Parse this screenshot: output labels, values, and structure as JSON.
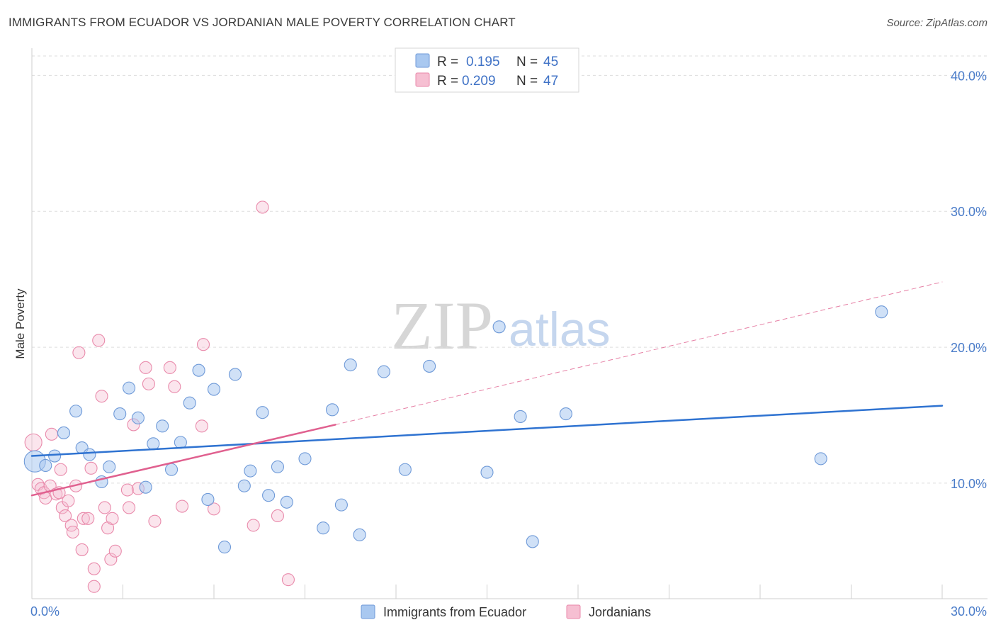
{
  "title": "IMMIGRANTS FROM ECUADOR VS JORDANIAN MALE POVERTY CORRELATION CHART",
  "source": "Source: ZipAtlas.com",
  "watermark": {
    "zip": "ZIP",
    "atlas": "atlas"
  },
  "colors": {
    "blue_fill": "#a9c8f0",
    "blue_stroke": "#6f9ad8",
    "blue_line": "#2f73d1",
    "pink_fill": "#f6bfd2",
    "pink_stroke": "#e98aab",
    "pink_line": "#e0608f",
    "tick_color": "#4a7cc9",
    "grid": "#dddddd"
  },
  "legend": {
    "rows": [
      {
        "r_label": "R =",
        "r_value": "0.195",
        "n_label": "N =",
        "n_value": "45",
        "color": "blue"
      },
      {
        "r_label": "R =",
        "r_value": "0.209",
        "n_label": "N =",
        "n_value": "47",
        "color": "pink"
      }
    ]
  },
  "bottom_legend": [
    {
      "label": "Immigrants from Ecuador",
      "color": "blue"
    },
    {
      "label": "Jordanians",
      "color": "pink"
    }
  ],
  "chart_data": {
    "type": "scatter",
    "xlabel": "",
    "ylabel": "Male Poverty",
    "xlim": [
      0,
      30
    ],
    "ylim": [
      1.5,
      42
    ],
    "x_tick_labels": [
      {
        "value": 0,
        "label": "0.0%"
      },
      {
        "value": 30,
        "label": "30.0%"
      }
    ],
    "y_tick_labels": [
      {
        "value": 10,
        "label": "10.0%"
      },
      {
        "value": 20,
        "label": "20.0%"
      },
      {
        "value": 30,
        "label": "30.0%"
      },
      {
        "value": 40,
        "label": "40.0%"
      }
    ],
    "grid": "horizontal dashed",
    "legend_placement": "top-center",
    "series": [
      {
        "name": "Immigrants from Ecuador",
        "color": "blue",
        "points": [
          [
            0.1,
            11.6
          ],
          [
            0.45,
            11.3
          ],
          [
            0.75,
            12.0
          ],
          [
            1.05,
            13.7
          ],
          [
            1.45,
            15.3
          ],
          [
            1.65,
            12.6
          ],
          [
            1.9,
            12.1
          ],
          [
            2.3,
            10.1
          ],
          [
            2.55,
            11.2
          ],
          [
            2.9,
            15.1
          ],
          [
            3.2,
            17.0
          ],
          [
            3.5,
            14.8
          ],
          [
            3.75,
            9.7
          ],
          [
            4.0,
            12.9
          ],
          [
            4.3,
            14.2
          ],
          [
            4.6,
            11.0
          ],
          [
            4.9,
            13.0
          ],
          [
            5.2,
            15.9
          ],
          [
            5.5,
            18.3
          ],
          [
            5.8,
            8.8
          ],
          [
            6.0,
            16.9
          ],
          [
            6.35,
            5.3
          ],
          [
            6.7,
            18.0
          ],
          [
            7.0,
            9.8
          ],
          [
            7.2,
            10.9
          ],
          [
            7.6,
            15.2
          ],
          [
            7.8,
            9.1
          ],
          [
            8.1,
            11.2
          ],
          [
            8.4,
            8.6
          ],
          [
            9.0,
            11.8
          ],
          [
            9.6,
            6.7
          ],
          [
            9.9,
            15.4
          ],
          [
            10.2,
            8.4
          ],
          [
            10.5,
            18.7
          ],
          [
            10.8,
            6.2
          ],
          [
            11.6,
            18.2
          ],
          [
            12.3,
            11.0
          ],
          [
            13.1,
            18.6
          ],
          [
            15.0,
            10.8
          ],
          [
            15.4,
            21.5
          ],
          [
            16.1,
            14.9
          ],
          [
            16.5,
            5.7
          ],
          [
            17.6,
            15.1
          ],
          [
            26.0,
            11.8
          ],
          [
            28.0,
            22.6
          ]
        ]
      },
      {
        "name": "Jordanians",
        "color": "pink",
        "points": [
          [
            0.05,
            13.0
          ],
          [
            0.2,
            9.9
          ],
          [
            0.3,
            9.6
          ],
          [
            0.4,
            9.3
          ],
          [
            0.45,
            8.9
          ],
          [
            0.6,
            9.8
          ],
          [
            0.65,
            13.6
          ],
          [
            0.8,
            9.2
          ],
          [
            0.9,
            9.3
          ],
          [
            0.95,
            11.0
          ],
          [
            1.0,
            8.2
          ],
          [
            1.1,
            7.6
          ],
          [
            1.2,
            8.7
          ],
          [
            1.3,
            6.9
          ],
          [
            1.35,
            6.4
          ],
          [
            1.45,
            9.8
          ],
          [
            1.55,
            19.6
          ],
          [
            1.65,
            5.1
          ],
          [
            1.7,
            7.4
          ],
          [
            1.85,
            7.4
          ],
          [
            1.95,
            11.1
          ],
          [
            2.05,
            3.7
          ],
          [
            2.05,
            2.4
          ],
          [
            2.2,
            20.5
          ],
          [
            2.3,
            16.4
          ],
          [
            2.4,
            8.2
          ],
          [
            2.5,
            6.7
          ],
          [
            2.6,
            4.4
          ],
          [
            2.65,
            7.4
          ],
          [
            2.75,
            5.0
          ],
          [
            3.15,
            9.5
          ],
          [
            3.2,
            8.2
          ],
          [
            3.35,
            14.3
          ],
          [
            3.5,
            9.6
          ],
          [
            3.75,
            18.5
          ],
          [
            3.85,
            17.3
          ],
          [
            4.05,
            7.2
          ],
          [
            4.55,
            18.5
          ],
          [
            4.7,
            17.1
          ],
          [
            4.95,
            8.3
          ],
          [
            5.6,
            14.2
          ],
          [
            5.65,
            20.2
          ],
          [
            6.0,
            8.1
          ],
          [
            7.3,
            6.9
          ],
          [
            7.6,
            30.3
          ],
          [
            8.1,
            7.6
          ],
          [
            8.45,
            2.9
          ]
        ]
      }
    ],
    "trend_lines": [
      {
        "series": "Immigrants from Ecuador",
        "x": [
          0,
          30
        ],
        "y": [
          12.0,
          15.7
        ],
        "style": "solid"
      },
      {
        "series": "Jordanians",
        "x": [
          0,
          10
        ],
        "y": [
          9.1,
          14.3
        ],
        "style": "solid"
      },
      {
        "series": "Jordanians",
        "x": [
          10,
          30
        ],
        "y": [
          14.3,
          24.8
        ],
        "style": "dashed"
      }
    ]
  }
}
